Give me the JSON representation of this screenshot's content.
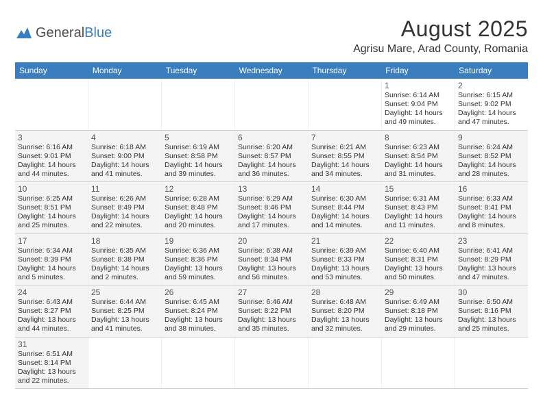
{
  "logo": {
    "text1": "General",
    "text2": "Blue"
  },
  "title": "August 2025",
  "location": "Agrisu Mare, Arad County, Romania",
  "colors": {
    "header_bg": "#3a7ebf",
    "header_text": "#ffffff",
    "shaded_bg": "#f4f4f4",
    "border": "#cfcfcf"
  },
  "dayHeaders": [
    "Sunday",
    "Monday",
    "Tuesday",
    "Wednesday",
    "Thursday",
    "Friday",
    "Saturday"
  ],
  "weeks": [
    [
      {
        "day": "",
        "sunrise": "",
        "sunset": "",
        "daylight1": "",
        "daylight2": "",
        "shaded": false
      },
      {
        "day": "",
        "sunrise": "",
        "sunset": "",
        "daylight1": "",
        "daylight2": "",
        "shaded": false
      },
      {
        "day": "",
        "sunrise": "",
        "sunset": "",
        "daylight1": "",
        "daylight2": "",
        "shaded": false
      },
      {
        "day": "",
        "sunrise": "",
        "sunset": "",
        "daylight1": "",
        "daylight2": "",
        "shaded": false
      },
      {
        "day": "",
        "sunrise": "",
        "sunset": "",
        "daylight1": "",
        "daylight2": "",
        "shaded": false
      },
      {
        "day": "1",
        "sunrise": "Sunrise: 6:14 AM",
        "sunset": "Sunset: 9:04 PM",
        "daylight1": "Daylight: 14 hours",
        "daylight2": "and 49 minutes.",
        "shaded": false
      },
      {
        "day": "2",
        "sunrise": "Sunrise: 6:15 AM",
        "sunset": "Sunset: 9:02 PM",
        "daylight1": "Daylight: 14 hours",
        "daylight2": "and 47 minutes.",
        "shaded": false
      }
    ],
    [
      {
        "day": "3",
        "sunrise": "Sunrise: 6:16 AM",
        "sunset": "Sunset: 9:01 PM",
        "daylight1": "Daylight: 14 hours",
        "daylight2": "and 44 minutes.",
        "shaded": true
      },
      {
        "day": "4",
        "sunrise": "Sunrise: 6:18 AM",
        "sunset": "Sunset: 9:00 PM",
        "daylight1": "Daylight: 14 hours",
        "daylight2": "and 41 minutes.",
        "shaded": true
      },
      {
        "day": "5",
        "sunrise": "Sunrise: 6:19 AM",
        "sunset": "Sunset: 8:58 PM",
        "daylight1": "Daylight: 14 hours",
        "daylight2": "and 39 minutes.",
        "shaded": true
      },
      {
        "day": "6",
        "sunrise": "Sunrise: 6:20 AM",
        "sunset": "Sunset: 8:57 PM",
        "daylight1": "Daylight: 14 hours",
        "daylight2": "and 36 minutes.",
        "shaded": true
      },
      {
        "day": "7",
        "sunrise": "Sunrise: 6:21 AM",
        "sunset": "Sunset: 8:55 PM",
        "daylight1": "Daylight: 14 hours",
        "daylight2": "and 34 minutes.",
        "shaded": true
      },
      {
        "day": "8",
        "sunrise": "Sunrise: 6:23 AM",
        "sunset": "Sunset: 8:54 PM",
        "daylight1": "Daylight: 14 hours",
        "daylight2": "and 31 minutes.",
        "shaded": true
      },
      {
        "day": "9",
        "sunrise": "Sunrise: 6:24 AM",
        "sunset": "Sunset: 8:52 PM",
        "daylight1": "Daylight: 14 hours",
        "daylight2": "and 28 minutes.",
        "shaded": true
      }
    ],
    [
      {
        "day": "10",
        "sunrise": "Sunrise: 6:25 AM",
        "sunset": "Sunset: 8:51 PM",
        "daylight1": "Daylight: 14 hours",
        "daylight2": "and 25 minutes.",
        "shaded": true
      },
      {
        "day": "11",
        "sunrise": "Sunrise: 6:26 AM",
        "sunset": "Sunset: 8:49 PM",
        "daylight1": "Daylight: 14 hours",
        "daylight2": "and 22 minutes.",
        "shaded": true
      },
      {
        "day": "12",
        "sunrise": "Sunrise: 6:28 AM",
        "sunset": "Sunset: 8:48 PM",
        "daylight1": "Daylight: 14 hours",
        "daylight2": "and 20 minutes.",
        "shaded": true
      },
      {
        "day": "13",
        "sunrise": "Sunrise: 6:29 AM",
        "sunset": "Sunset: 8:46 PM",
        "daylight1": "Daylight: 14 hours",
        "daylight2": "and 17 minutes.",
        "shaded": true
      },
      {
        "day": "14",
        "sunrise": "Sunrise: 6:30 AM",
        "sunset": "Sunset: 8:44 PM",
        "daylight1": "Daylight: 14 hours",
        "daylight2": "and 14 minutes.",
        "shaded": true
      },
      {
        "day": "15",
        "sunrise": "Sunrise: 6:31 AM",
        "sunset": "Sunset: 8:43 PM",
        "daylight1": "Daylight: 14 hours",
        "daylight2": "and 11 minutes.",
        "shaded": true
      },
      {
        "day": "16",
        "sunrise": "Sunrise: 6:33 AM",
        "sunset": "Sunset: 8:41 PM",
        "daylight1": "Daylight: 14 hours",
        "daylight2": "and 8 minutes.",
        "shaded": true
      }
    ],
    [
      {
        "day": "17",
        "sunrise": "Sunrise: 6:34 AM",
        "sunset": "Sunset: 8:39 PM",
        "daylight1": "Daylight: 14 hours",
        "daylight2": "and 5 minutes.",
        "shaded": true
      },
      {
        "day": "18",
        "sunrise": "Sunrise: 6:35 AM",
        "sunset": "Sunset: 8:38 PM",
        "daylight1": "Daylight: 14 hours",
        "daylight2": "and 2 minutes.",
        "shaded": true
      },
      {
        "day": "19",
        "sunrise": "Sunrise: 6:36 AM",
        "sunset": "Sunset: 8:36 PM",
        "daylight1": "Daylight: 13 hours",
        "daylight2": "and 59 minutes.",
        "shaded": true
      },
      {
        "day": "20",
        "sunrise": "Sunrise: 6:38 AM",
        "sunset": "Sunset: 8:34 PM",
        "daylight1": "Daylight: 13 hours",
        "daylight2": "and 56 minutes.",
        "shaded": true
      },
      {
        "day": "21",
        "sunrise": "Sunrise: 6:39 AM",
        "sunset": "Sunset: 8:33 PM",
        "daylight1": "Daylight: 13 hours",
        "daylight2": "and 53 minutes.",
        "shaded": true
      },
      {
        "day": "22",
        "sunrise": "Sunrise: 6:40 AM",
        "sunset": "Sunset: 8:31 PM",
        "daylight1": "Daylight: 13 hours",
        "daylight2": "and 50 minutes.",
        "shaded": true
      },
      {
        "day": "23",
        "sunrise": "Sunrise: 6:41 AM",
        "sunset": "Sunset: 8:29 PM",
        "daylight1": "Daylight: 13 hours",
        "daylight2": "and 47 minutes.",
        "shaded": true
      }
    ],
    [
      {
        "day": "24",
        "sunrise": "Sunrise: 6:43 AM",
        "sunset": "Sunset: 8:27 PM",
        "daylight1": "Daylight: 13 hours",
        "daylight2": "and 44 minutes.",
        "shaded": true
      },
      {
        "day": "25",
        "sunrise": "Sunrise: 6:44 AM",
        "sunset": "Sunset: 8:25 PM",
        "daylight1": "Daylight: 13 hours",
        "daylight2": "and 41 minutes.",
        "shaded": true
      },
      {
        "day": "26",
        "sunrise": "Sunrise: 6:45 AM",
        "sunset": "Sunset: 8:24 PM",
        "daylight1": "Daylight: 13 hours",
        "daylight2": "and 38 minutes.",
        "shaded": true
      },
      {
        "day": "27",
        "sunrise": "Sunrise: 6:46 AM",
        "sunset": "Sunset: 8:22 PM",
        "daylight1": "Daylight: 13 hours",
        "daylight2": "and 35 minutes.",
        "shaded": true
      },
      {
        "day": "28",
        "sunrise": "Sunrise: 6:48 AM",
        "sunset": "Sunset: 8:20 PM",
        "daylight1": "Daylight: 13 hours",
        "daylight2": "and 32 minutes.",
        "shaded": true
      },
      {
        "day": "29",
        "sunrise": "Sunrise: 6:49 AM",
        "sunset": "Sunset: 8:18 PM",
        "daylight1": "Daylight: 13 hours",
        "daylight2": "and 29 minutes.",
        "shaded": true
      },
      {
        "day": "30",
        "sunrise": "Sunrise: 6:50 AM",
        "sunset": "Sunset: 8:16 PM",
        "daylight1": "Daylight: 13 hours",
        "daylight2": "and 25 minutes.",
        "shaded": true
      }
    ],
    [
      {
        "day": "31",
        "sunrise": "Sunrise: 6:51 AM",
        "sunset": "Sunset: 8:14 PM",
        "daylight1": "Daylight: 13 hours",
        "daylight2": "and 22 minutes.",
        "shaded": true
      },
      {
        "day": "",
        "sunrise": "",
        "sunset": "",
        "daylight1": "",
        "daylight2": "",
        "shaded": false
      },
      {
        "day": "",
        "sunrise": "",
        "sunset": "",
        "daylight1": "",
        "daylight2": "",
        "shaded": false
      },
      {
        "day": "",
        "sunrise": "",
        "sunset": "",
        "daylight1": "",
        "daylight2": "",
        "shaded": false
      },
      {
        "day": "",
        "sunrise": "",
        "sunset": "",
        "daylight1": "",
        "daylight2": "",
        "shaded": false
      },
      {
        "day": "",
        "sunrise": "",
        "sunset": "",
        "daylight1": "",
        "daylight2": "",
        "shaded": false
      },
      {
        "day": "",
        "sunrise": "",
        "sunset": "",
        "daylight1": "",
        "daylight2": "",
        "shaded": false
      }
    ]
  ]
}
